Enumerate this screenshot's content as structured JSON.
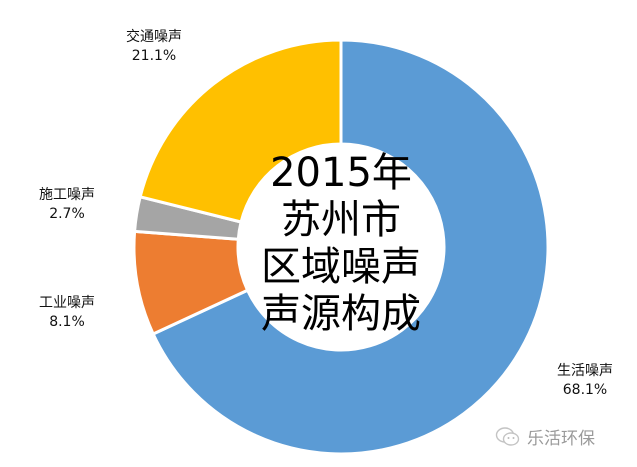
{
  "chart_data": {
    "type": "pie",
    "variant": "donut",
    "title": "2015年苏州市区域噪声声源构成",
    "title_lines": [
      "2015年",
      "苏州市",
      "区域噪声",
      "声源构成"
    ],
    "categories": [
      "生活噪声",
      "工业噪声",
      "施工噪声",
      "交通噪声"
    ],
    "values": [
      68.1,
      8.1,
      2.7,
      21.1
    ],
    "unit": "%",
    "colors": [
      "#5B9BD5",
      "#ED7D31",
      "#A5A5A5",
      "#FFC000"
    ],
    "start_angle_deg": 0,
    "direction": "clockwise",
    "legend": "none (data labels outside)"
  },
  "labels": [
    {
      "name": "生活噪声",
      "value": "68.1%"
    },
    {
      "name": "工业噪声",
      "value": "8.1%"
    },
    {
      "name": "施工噪声",
      "value": "2.7%"
    },
    {
      "name": "交通噪声",
      "value": "21.1%"
    }
  ],
  "watermark": {
    "text": "乐活环保",
    "icon": "wechat-icon"
  }
}
